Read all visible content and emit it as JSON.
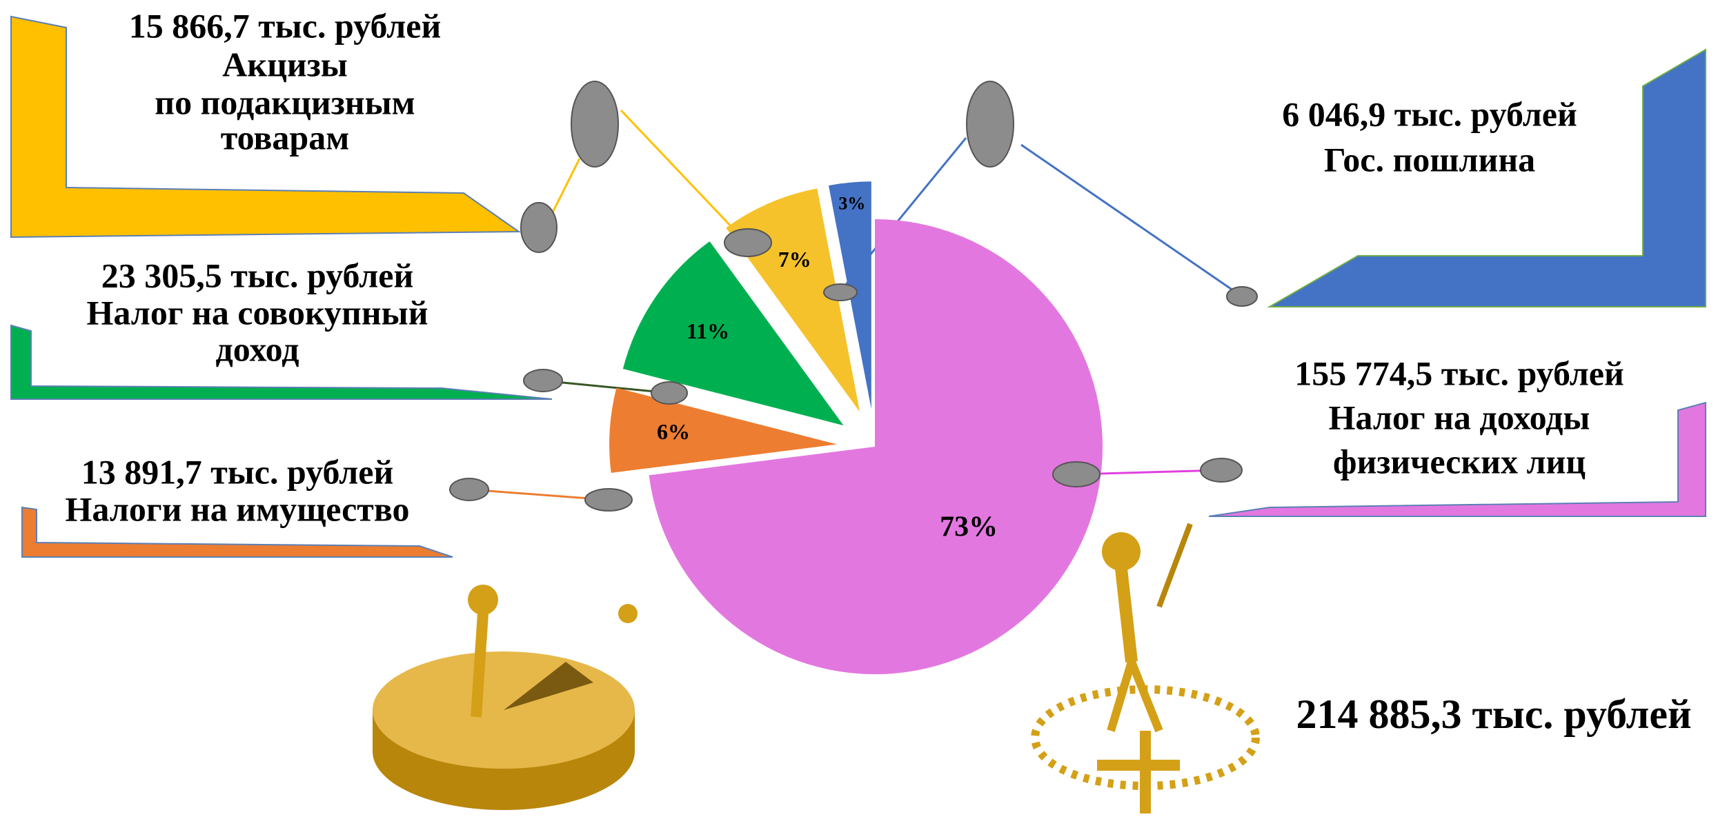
{
  "chart_data": {
    "type": "pie",
    "categories": [
      [
        "Налог на доходы",
        "физических лиц"
      ],
      [
        "Налоги на имущество"
      ],
      [
        "Налог на совокупный",
        "доход"
      ],
      [
        "Акцизы",
        "по подакцизным",
        "товарам"
      ],
      [
        "Гос. пошлина"
      ]
    ],
    "amount_labels": [
      "155 774,5 тыс. рублей",
      "13 891,7 тыс. рублей",
      "23 305,5 тыс. рублей",
      "15 866,7 тыс. рублей",
      "6 046,9 тыс. рублей"
    ],
    "values": [
      73,
      6,
      11,
      7,
      3
    ],
    "value_labels": [
      "73%",
      "6%",
      "11%",
      "7%",
      "3%"
    ],
    "colors": [
      "#e377e0",
      "#ed7d31",
      "#00b050",
      "#f6c22b",
      "#4472c4"
    ],
    "total_label": "214 885,3 тыс. рублей"
  }
}
